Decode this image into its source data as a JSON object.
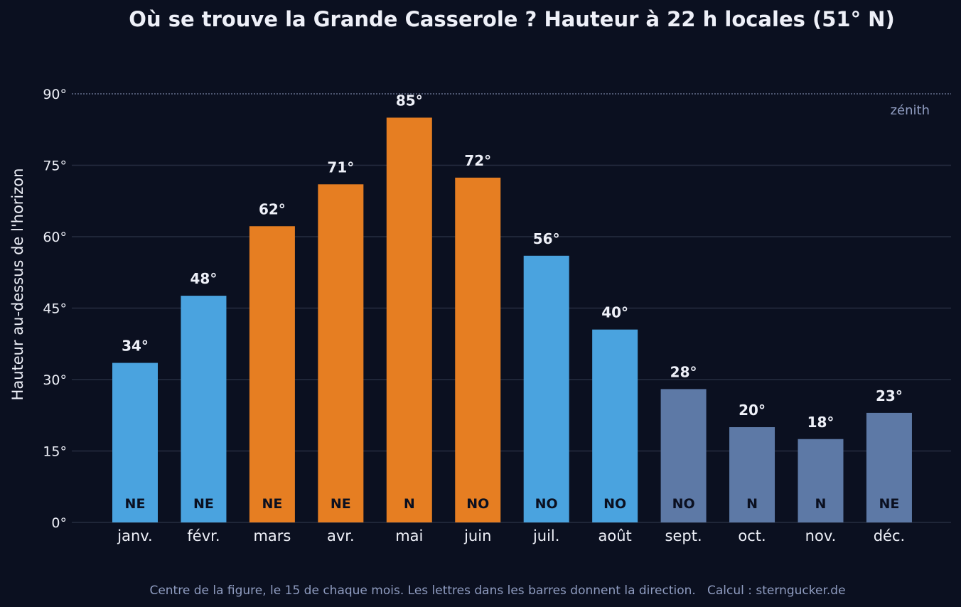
{
  "chart_data": {
    "type": "bar",
    "title": "Où se trouve la Grande Casserole ? Hauteur à 22 h locales (51° N)",
    "ylabel": "Hauteur au-dessus de l'horizon",
    "xlabel": "",
    "ylim": [
      0,
      90
    ],
    "yticks": [
      0,
      15,
      30,
      45,
      60,
      75,
      90
    ],
    "ytick_labels": [
      "0°",
      "15°",
      "30°",
      "45°",
      "60°",
      "75°",
      "90°"
    ],
    "grid": "horizontal",
    "categories": [
      "janv.",
      "févr.",
      "mars",
      "avr.",
      "mai",
      "juin",
      "juil.",
      "août",
      "sept.",
      "oct.",
      "nov.",
      "déc."
    ],
    "values": [
      33.5,
      47.6,
      62.2,
      71.0,
      85.0,
      72.4,
      56.0,
      40.5,
      28.0,
      20.0,
      17.5,
      23.0
    ],
    "value_labels": [
      "34°",
      "48°",
      "62°",
      "71°",
      "85°",
      "72°",
      "56°",
      "40°",
      "28°",
      "20°",
      "18°",
      "23°"
    ],
    "directions": [
      "NE",
      "NE",
      "NE",
      "NE",
      "N",
      "NO",
      "NO",
      "NO",
      "NO",
      "N",
      "N",
      "NE"
    ],
    "bar_colors": [
      "#4aa3df",
      "#4aa3df",
      "#e67e22",
      "#e67e22",
      "#e67e22",
      "#e67e22",
      "#4aa3df",
      "#4aa3df",
      "#5d79a6",
      "#5d79a6",
      "#5d79a6",
      "#5d79a6"
    ],
    "reference_line": {
      "value": 90,
      "label": "zénith"
    },
    "footer": "Centre de la figure, le 15 de chaque mois. Les lettres dans les barres donnent la direction.   Calcul : sterngucker.de"
  },
  "colors": {
    "background": "#0b1020",
    "text": "#eef0f8",
    "muted_text": "#8f9cc0",
    "grid": "#262d40",
    "dir_text": "#0b1020"
  }
}
